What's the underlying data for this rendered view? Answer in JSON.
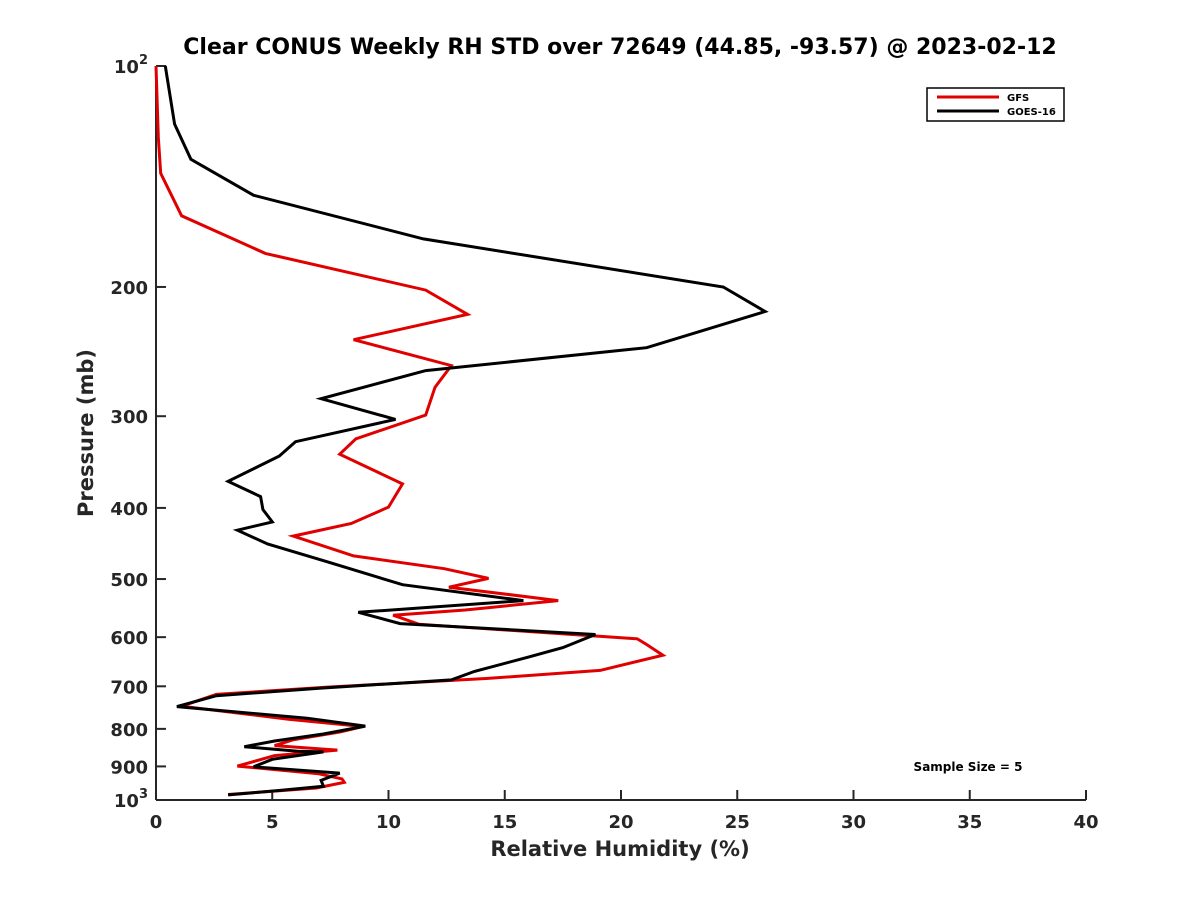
{
  "chart_data": {
    "type": "line",
    "title": "Clear CONUS Weekly RH STD over 72649 (44.85, -93.57) @ 2023-02-12",
    "xlabel": "Relative Humidity (%)",
    "ylabel": "Pressure (mb)",
    "xlim": [
      0,
      40
    ],
    "ylim": [
      100,
      1000
    ],
    "y_scale": "log",
    "y_reversed": true,
    "x_ticks": [
      0,
      5,
      10,
      15,
      20,
      25,
      30,
      35,
      40
    ],
    "x_tick_labels": [
      "0",
      "5",
      "10",
      "15",
      "20",
      "25",
      "30",
      "35",
      "40"
    ],
    "y_ticks": [
      100,
      200,
      300,
      400,
      500,
      600,
      700,
      800,
      900,
      1000
    ],
    "y_tick_labels": [
      {
        "base": "10",
        "sup": "2"
      },
      {
        "base": "200"
      },
      {
        "base": "300"
      },
      {
        "base": "400"
      },
      {
        "base": "500"
      },
      {
        "base": "600"
      },
      {
        "base": "700"
      },
      {
        "base": "800"
      },
      {
        "base": "900"
      },
      {
        "base": "10",
        "sup": "3"
      }
    ],
    "grid": false,
    "legend_position": "top-right",
    "annotation": "Sample Size = 5",
    "series": [
      {
        "name": "GFS",
        "color": "#e00000",
        "points": [
          [
            0.0,
            100
          ],
          [
            0.1,
            125
          ],
          [
            0.2,
            140
          ],
          [
            1.1,
            160
          ],
          [
            4.7,
            180
          ],
          [
            11.6,
            202
          ],
          [
            13.4,
            218
          ],
          [
            8.5,
            236
          ],
          [
            12.7,
            256
          ],
          [
            12.0,
            274
          ],
          [
            11.6,
            299
          ],
          [
            8.6,
            322
          ],
          [
            7.9,
            338
          ],
          [
            10.6,
            371
          ],
          [
            10.0,
            399
          ],
          [
            8.4,
            420
          ],
          [
            5.9,
            437
          ],
          [
            8.5,
            465
          ],
          [
            12.4,
            484
          ],
          [
            14.3,
            499
          ],
          [
            12.6,
            513
          ],
          [
            17.3,
            535
          ],
          [
            13.3,
            551
          ],
          [
            10.2,
            560
          ],
          [
            11.3,
            576
          ],
          [
            20.7,
            603
          ],
          [
            21.1,
            614
          ],
          [
            21.8,
            635
          ],
          [
            19.1,
            666
          ],
          [
            14.2,
            683
          ],
          [
            7.3,
            702
          ],
          [
            2.6,
            718
          ],
          [
            1.1,
            745
          ],
          [
            5.7,
            776
          ],
          [
            8.9,
            794
          ],
          [
            7.9,
            808
          ],
          [
            5.9,
            828
          ],
          [
            5.1,
            843
          ],
          [
            7.8,
            855
          ],
          [
            5.1,
            870
          ],
          [
            3.5,
            899
          ],
          [
            7.0,
            921
          ],
          [
            8.0,
            936
          ],
          [
            8.1,
            946
          ],
          [
            6.9,
            963
          ],
          [
            3.1,
            983
          ]
        ]
      },
      {
        "name": "GOES-16",
        "color": "#000000",
        "points": [
          [
            0.4,
            100
          ],
          [
            0.8,
            120
          ],
          [
            1.5,
            134
          ],
          [
            4.2,
            150
          ],
          [
            11.5,
            172
          ],
          [
            24.4,
            200
          ],
          [
            26.2,
            216
          ],
          [
            21.1,
            242
          ],
          [
            11.6,
            260
          ],
          [
            7.1,
            284
          ],
          [
            10.3,
            303
          ],
          [
            6.0,
            325
          ],
          [
            5.3,
            340
          ],
          [
            3.1,
            368
          ],
          [
            4.5,
            386
          ],
          [
            4.6,
            402
          ],
          [
            5.0,
            418
          ],
          [
            3.5,
            429
          ],
          [
            4.8,
            448
          ],
          [
            7.3,
            473
          ],
          [
            10.6,
            509
          ],
          [
            15.8,
            535
          ],
          [
            8.7,
            555
          ],
          [
            10.5,
            575
          ],
          [
            18.9,
            595
          ],
          [
            17.5,
            620
          ],
          [
            16.0,
            639
          ],
          [
            13.7,
            668
          ],
          [
            12.7,
            686
          ],
          [
            7.1,
            704
          ],
          [
            2.6,
            721
          ],
          [
            0.9,
            746
          ],
          [
            6.5,
            774
          ],
          [
            9.0,
            793
          ],
          [
            7.2,
            813
          ],
          [
            5.1,
            831
          ],
          [
            3.8,
            846
          ],
          [
            6.1,
            858
          ],
          [
            7.2,
            860
          ],
          [
            5.0,
            880
          ],
          [
            4.2,
            901
          ],
          [
            7.9,
            919
          ],
          [
            7.1,
            940
          ],
          [
            7.2,
            958
          ],
          [
            5.4,
            970
          ],
          [
            3.1,
            984
          ]
        ]
      }
    ]
  }
}
